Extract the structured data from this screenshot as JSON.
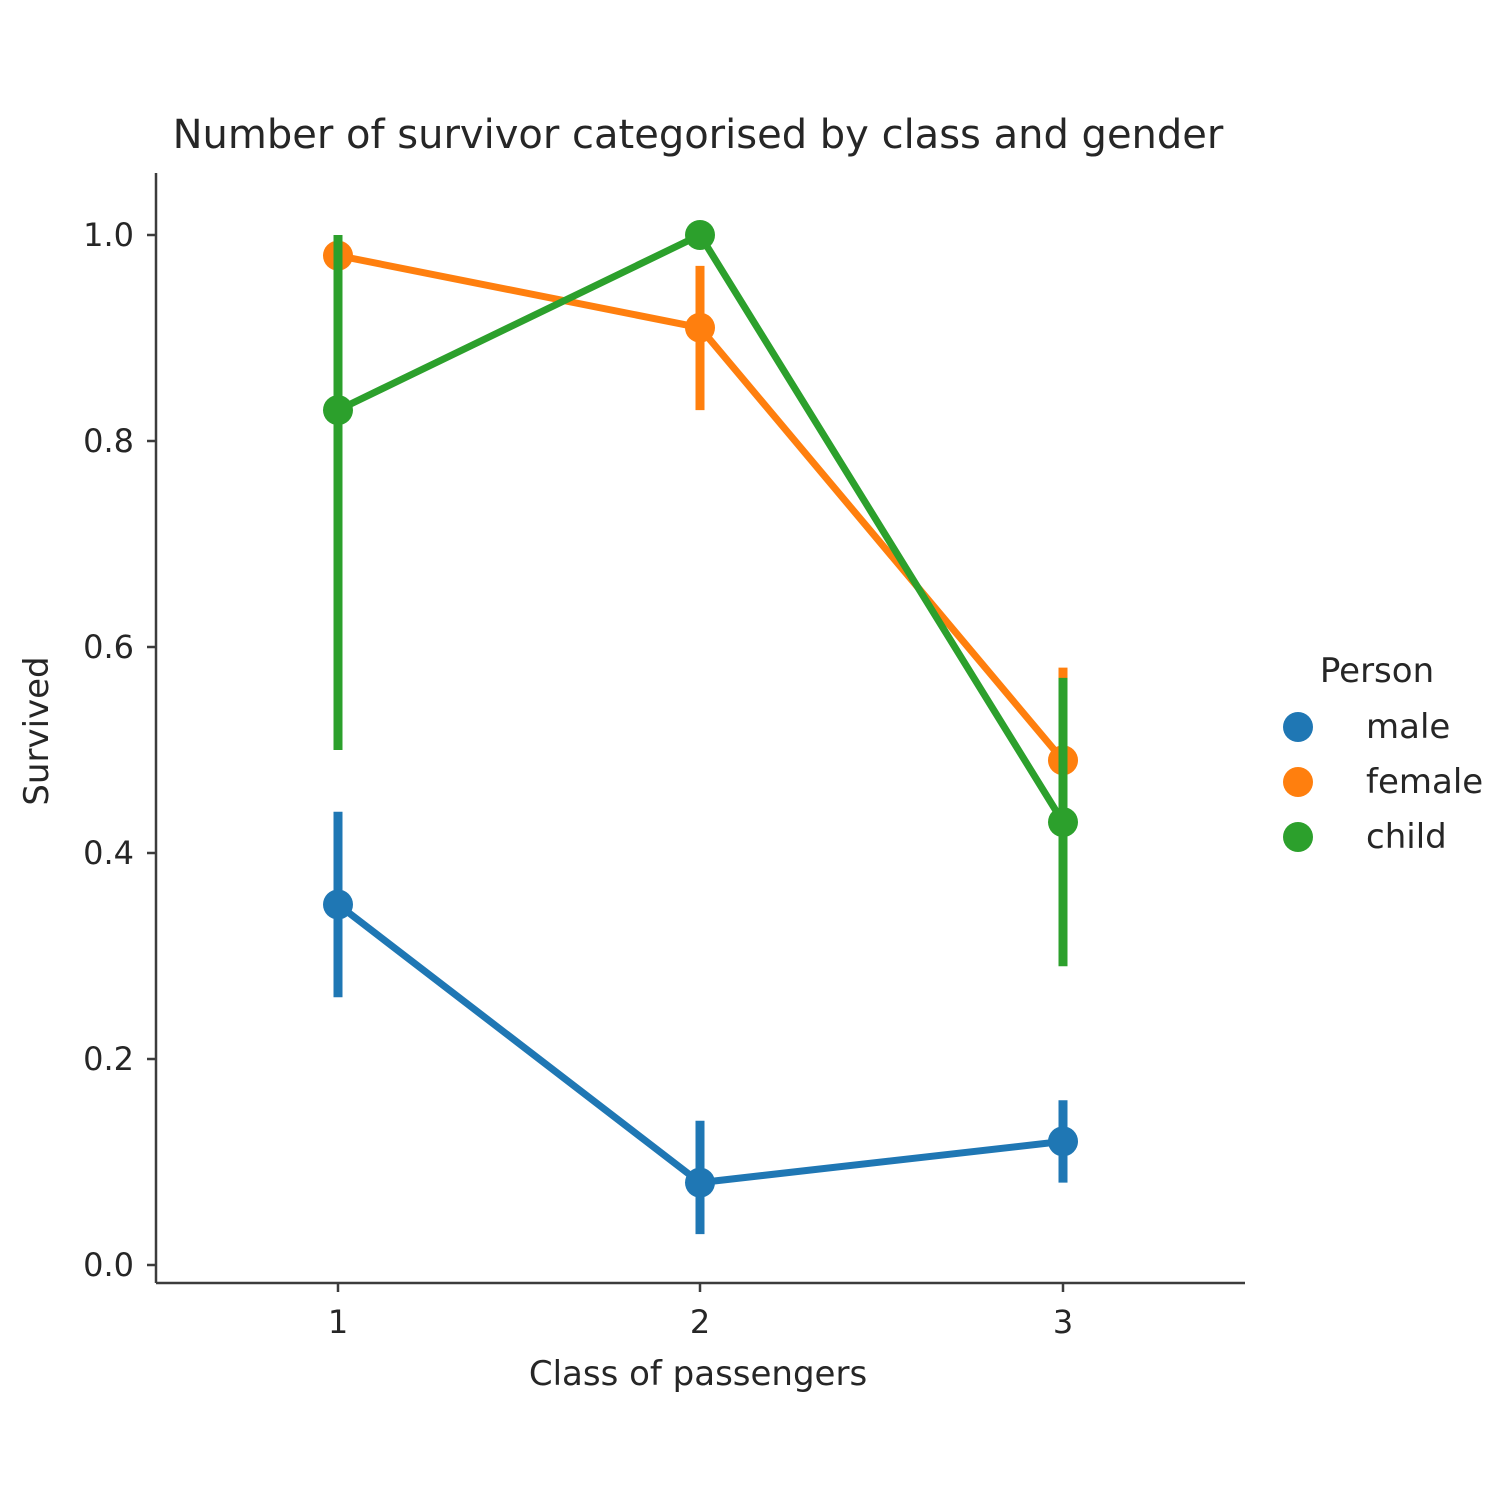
{
  "chart_data": {
    "type": "line",
    "title": "Number of survivor categorised by class and gender",
    "xlabel": "Class of passengers",
    "ylabel": "Survived",
    "categories": [
      "1",
      "2",
      "3"
    ],
    "ylim": [
      -0.02,
      1.06
    ],
    "yticks": [
      "0.0",
      "0.2",
      "0.4",
      "0.6",
      "0.8",
      "1.0"
    ],
    "legend": {
      "title": "Person",
      "placement": "right"
    },
    "grid": false,
    "series": [
      {
        "name": "male",
        "color": "#1f77b4",
        "values": [
          0.35,
          0.08,
          0.12
        ],
        "ci_low": [
          0.26,
          0.03,
          0.08
        ],
        "ci_high": [
          0.44,
          0.14,
          0.16
        ]
      },
      {
        "name": "female",
        "color": "#ff7f0e",
        "values": [
          0.98,
          0.91,
          0.49
        ],
        "ci_low": [
          0.96,
          0.83,
          0.41
        ],
        "ci_high": [
          1.0,
          0.97,
          0.58
        ]
      },
      {
        "name": "child",
        "color": "#2ca02c",
        "values": [
          0.83,
          1.0,
          0.43
        ],
        "ci_low": [
          0.5,
          1.0,
          0.29
        ],
        "ci_high": [
          1.0,
          1.0,
          0.57
        ]
      }
    ]
  }
}
